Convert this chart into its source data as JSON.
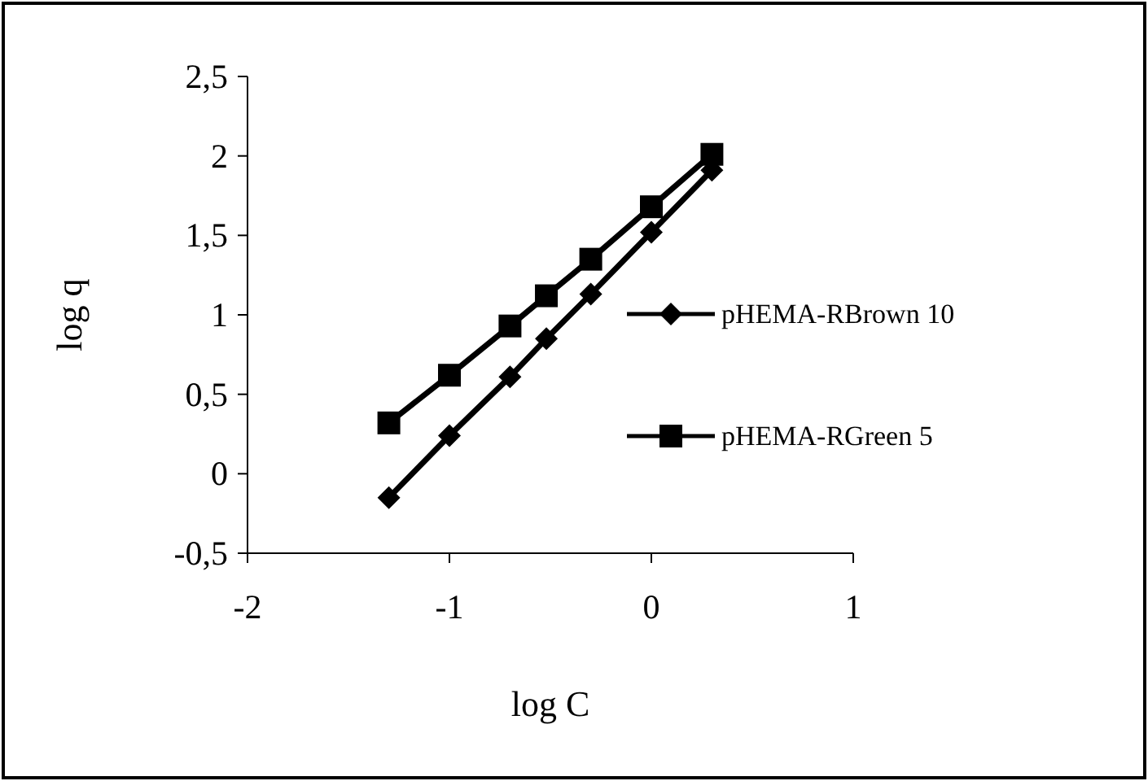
{
  "chart_data": {
    "type": "line",
    "xlabel": "log C",
    "ylabel": "log q",
    "xlim": [
      -2,
      1
    ],
    "xticks": [
      -2,
      -1,
      0,
      1
    ],
    "ylim": [
      -0.5,
      2.5
    ],
    "yticks": [
      {
        "value": -0.5,
        "label": "-0,5"
      },
      0,
      {
        "value": 0.5,
        "label": "0,5"
      },
      1,
      {
        "value": 1.5,
        "label": "1,5"
      },
      2,
      {
        "value": 2.5,
        "label": "2,5"
      }
    ],
    "grid": false,
    "legend": "right",
    "line_style": "solid",
    "series": [
      {
        "name": "pHEMA-RBrown 10",
        "color": "#000000",
        "marker": "diamond",
        "x": [
          -1.3,
          -1,
          -0.7,
          -0.52,
          -0.3,
          0,
          0.3
        ],
        "values": [
          -0.15,
          0.24,
          0.61,
          0.85,
          1.13,
          1.52,
          1.91
        ]
      },
      {
        "name": "pHEMA-RGreen 5",
        "color": "#000000",
        "marker": "square",
        "x": [
          -1.3,
          -1,
          -0.7,
          -0.52,
          -0.3,
          0,
          0.3
        ],
        "values": [
          0.32,
          0.62,
          0.93,
          1.12,
          1.35,
          1.68,
          2.01
        ]
      }
    ]
  }
}
